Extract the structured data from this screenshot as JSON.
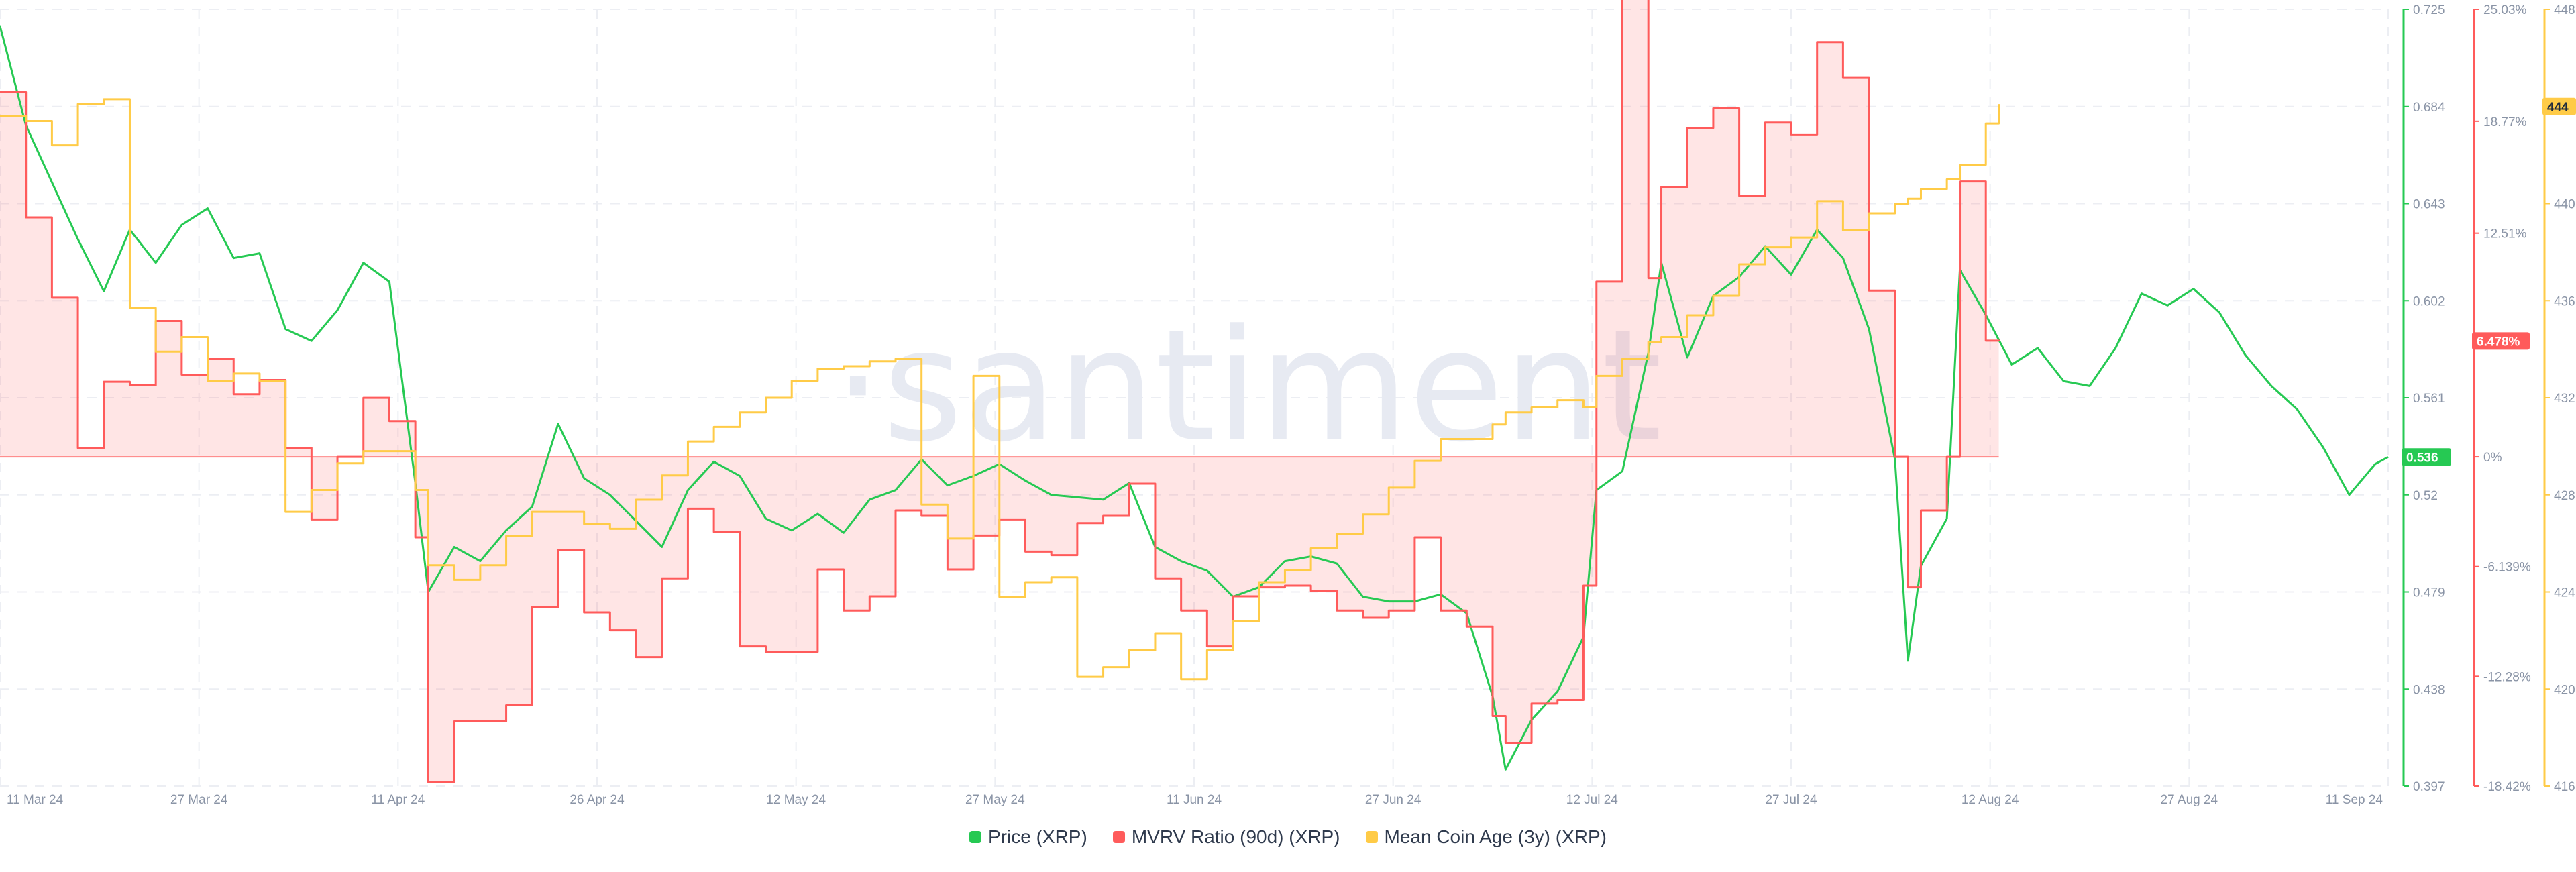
{
  "chart_data": {
    "type": "line",
    "title": "",
    "watermark": "·santiment",
    "x_axis": {
      "labels": [
        "11 Mar 24",
        "27 Mar 24",
        "11 Apr 24",
        "26 Apr 24",
        "12 May 24",
        "27 May 24",
        "11 Jun 24",
        "27 Jun 24",
        "12 Jul 24",
        "27 Jul 24",
        "12 Aug 24",
        "27 Aug 24",
        "11 Sep 24"
      ],
      "range": [
        "2024-03-11",
        "2024-09-11"
      ]
    },
    "axes": {
      "price": {
        "color": "#26c953",
        "ticks": [
          "0.725",
          "0.684",
          "0.643",
          "0.602",
          "0.561",
          "0.52",
          "0.479",
          "0.438",
          "0.397"
        ],
        "range": [
          0.397,
          0.725
        ]
      },
      "mvrv": {
        "color": "#ff5b5b",
        "ticks": [
          "25.03%",
          "18.77%",
          "12.51%",
          "6.478%",
          "0%",
          "-6.139%",
          "-12.28%",
          "-18.42%"
        ],
        "range": [
          -18.42,
          25.03
        ],
        "unit": "%"
      },
      "mca": {
        "color": "#ffcb47",
        "ticks": [
          "448",
          "444",
          "440",
          "436",
          "432",
          "428",
          "424",
          "420",
          "416"
        ],
        "range": [
          416,
          448
        ]
      }
    },
    "current_values": {
      "price": "0.536",
      "mvrv": "6.478%",
      "mca": "444"
    },
    "series": [
      {
        "name": "Price (XRP)",
        "key": "price",
        "color": "#26c953",
        "points": [
          [
            "2024-03-11",
            0.718
          ],
          [
            "2024-03-13",
            0.676
          ],
          [
            "2024-03-15",
            0.652
          ],
          [
            "2024-03-17",
            0.628
          ],
          [
            "2024-03-19",
            0.606
          ],
          [
            "2024-03-21",
            0.632
          ],
          [
            "2024-03-23",
            0.618
          ],
          [
            "2024-03-25",
            0.634
          ],
          [
            "2024-03-27",
            0.641
          ],
          [
            "2024-03-29",
            0.62
          ],
          [
            "2024-03-31",
            0.622
          ],
          [
            "2024-04-02",
            0.59
          ],
          [
            "2024-04-04",
            0.585
          ],
          [
            "2024-04-06",
            0.598
          ],
          [
            "2024-04-08",
            0.618
          ],
          [
            "2024-04-10",
            0.61
          ],
          [
            "2024-04-12",
            0.525
          ],
          [
            "2024-04-13",
            0.479
          ],
          [
            "2024-04-15",
            0.498
          ],
          [
            "2024-04-17",
            0.492
          ],
          [
            "2024-04-19",
            0.505
          ],
          [
            "2024-04-21",
            0.515
          ],
          [
            "2024-04-23",
            0.55
          ],
          [
            "2024-04-25",
            0.527
          ],
          [
            "2024-04-27",
            0.52
          ],
          [
            "2024-04-29",
            0.509
          ],
          [
            "2024-05-01",
            0.498
          ],
          [
            "2024-05-03",
            0.522
          ],
          [
            "2024-05-05",
            0.534
          ],
          [
            "2024-05-07",
            0.528
          ],
          [
            "2024-05-09",
            0.51
          ],
          [
            "2024-05-11",
            0.505
          ],
          [
            "2024-05-13",
            0.512
          ],
          [
            "2024-05-15",
            0.504
          ],
          [
            "2024-05-17",
            0.518
          ],
          [
            "2024-05-19",
            0.522
          ],
          [
            "2024-05-21",
            0.535
          ],
          [
            "2024-05-23",
            0.524
          ],
          [
            "2024-05-25",
            0.528
          ],
          [
            "2024-05-27",
            0.533
          ],
          [
            "2024-05-29",
            0.526
          ],
          [
            "2024-05-31",
            0.52
          ],
          [
            "2024-06-02",
            0.519
          ],
          [
            "2024-06-04",
            0.518
          ],
          [
            "2024-06-06",
            0.525
          ],
          [
            "2024-06-08",
            0.498
          ],
          [
            "2024-06-10",
            0.492
          ],
          [
            "2024-06-12",
            0.488
          ],
          [
            "2024-06-14",
            0.477
          ],
          [
            "2024-06-16",
            0.481
          ],
          [
            "2024-06-18",
            0.492
          ],
          [
            "2024-06-20",
            0.494
          ],
          [
            "2024-06-22",
            0.491
          ],
          [
            "2024-06-24",
            0.477
          ],
          [
            "2024-06-26",
            0.475
          ],
          [
            "2024-06-28",
            0.475
          ],
          [
            "2024-06-30",
            0.478
          ],
          [
            "2024-07-02",
            0.47
          ],
          [
            "2024-07-04",
            0.435
          ],
          [
            "2024-07-05",
            0.404
          ],
          [
            "2024-07-07",
            0.425
          ],
          [
            "2024-07-09",
            0.437
          ],
          [
            "2024-07-11",
            0.46
          ],
          [
            "2024-07-12",
            0.522
          ],
          [
            "2024-07-14",
            0.53
          ],
          [
            "2024-07-16",
            0.58
          ],
          [
            "2024-07-17",
            0.618
          ],
          [
            "2024-07-19",
            0.578
          ],
          [
            "2024-07-21",
            0.604
          ],
          [
            "2024-07-23",
            0.612
          ],
          [
            "2024-07-25",
            0.625
          ],
          [
            "2024-07-27",
            0.613
          ],
          [
            "2024-07-29",
            0.632
          ],
          [
            "2024-07-31",
            0.62
          ],
          [
            "2024-08-02",
            0.59
          ],
          [
            "2024-08-04",
            0.535
          ],
          [
            "2024-08-05",
            0.45
          ],
          [
            "2024-08-06",
            0.49
          ],
          [
            "2024-08-08",
            0.51
          ],
          [
            "2024-08-09",
            0.615
          ],
          [
            "2024-08-11",
            0.596
          ],
          [
            "2024-08-13",
            0.575
          ],
          [
            "2024-08-15",
            0.582
          ],
          [
            "2024-08-17",
            0.568
          ],
          [
            "2024-08-19",
            0.566
          ],
          [
            "2024-08-21",
            0.582
          ],
          [
            "2024-08-23",
            0.605
          ],
          [
            "2024-08-25",
            0.6
          ],
          [
            "2024-08-27",
            0.607
          ],
          [
            "2024-08-29",
            0.597
          ],
          [
            "2024-08-31",
            0.579
          ],
          [
            "2024-09-02",
            0.566
          ],
          [
            "2024-09-04",
            0.556
          ],
          [
            "2024-09-06",
            0.54
          ],
          [
            "2024-09-08",
            0.52
          ],
          [
            "2024-09-10",
            0.533
          ],
          [
            "2024-09-11",
            0.536
          ]
        ]
      },
      {
        "name": "MVRV Ratio (90d) (XRP)",
        "key": "mvrv",
        "color": "#ff5b5b",
        "points": [
          [
            "2024-03-11",
            20.4
          ],
          [
            "2024-03-13",
            13.4
          ],
          [
            "2024-03-15",
            8.9
          ],
          [
            "2024-03-17",
            0.5
          ],
          [
            "2024-03-19",
            4.2
          ],
          [
            "2024-03-21",
            4.0
          ],
          [
            "2024-03-23",
            7.6
          ],
          [
            "2024-03-25",
            4.6
          ],
          [
            "2024-03-27",
            5.5
          ],
          [
            "2024-03-29",
            3.5
          ],
          [
            "2024-03-31",
            4.3
          ],
          [
            "2024-04-02",
            0.5
          ],
          [
            "2024-04-04",
            -3.5
          ],
          [
            "2024-04-06",
            0.0
          ],
          [
            "2024-04-08",
            3.3
          ],
          [
            "2024-04-10",
            2.0
          ],
          [
            "2024-04-12",
            -4.5
          ],
          [
            "2024-04-13",
            -18.2
          ],
          [
            "2024-04-15",
            -14.8
          ],
          [
            "2024-04-17",
            -14.8
          ],
          [
            "2024-04-19",
            -13.9
          ],
          [
            "2024-04-21",
            -8.4
          ],
          [
            "2024-04-23",
            -5.2
          ],
          [
            "2024-04-25",
            -8.7
          ],
          [
            "2024-04-27",
            -9.7
          ],
          [
            "2024-04-29",
            -11.2
          ],
          [
            "2024-05-01",
            -6.8
          ],
          [
            "2024-05-03",
            -2.9
          ],
          [
            "2024-05-05",
            -4.2
          ],
          [
            "2024-05-07",
            -10.6
          ],
          [
            "2024-05-09",
            -10.9
          ],
          [
            "2024-05-11",
            -10.9
          ],
          [
            "2024-05-13",
            -6.3
          ],
          [
            "2024-05-15",
            -8.6
          ],
          [
            "2024-05-17",
            -7.8
          ],
          [
            "2024-05-19",
            -3.0
          ],
          [
            "2024-05-21",
            -3.3
          ],
          [
            "2024-05-23",
            -6.3
          ],
          [
            "2024-05-25",
            -4.4
          ],
          [
            "2024-05-27",
            -3.5
          ],
          [
            "2024-05-29",
            -5.3
          ],
          [
            "2024-05-31",
            -5.5
          ],
          [
            "2024-06-02",
            -3.7
          ],
          [
            "2024-06-04",
            -3.3
          ],
          [
            "2024-06-06",
            -1.5
          ],
          [
            "2024-06-08",
            -6.8
          ],
          [
            "2024-06-10",
            -8.6
          ],
          [
            "2024-06-12",
            -10.6
          ],
          [
            "2024-06-14",
            -7.8
          ],
          [
            "2024-06-16",
            -7.3
          ],
          [
            "2024-06-18",
            -7.2
          ],
          [
            "2024-06-20",
            -7.5
          ],
          [
            "2024-06-22",
            -8.6
          ],
          [
            "2024-06-24",
            -9.0
          ],
          [
            "2024-06-26",
            -8.6
          ],
          [
            "2024-06-28",
            -4.5
          ],
          [
            "2024-06-30",
            -8.6
          ],
          [
            "2024-07-02",
            -9.5
          ],
          [
            "2024-07-04",
            -14.5
          ],
          [
            "2024-07-05",
            -16.0
          ],
          [
            "2024-07-07",
            -13.8
          ],
          [
            "2024-07-09",
            -13.6
          ],
          [
            "2024-07-11",
            -7.2
          ],
          [
            "2024-07-12",
            9.8
          ],
          [
            "2024-07-14",
            26.6
          ],
          [
            "2024-07-16",
            10.0
          ],
          [
            "2024-07-17",
            15.1
          ],
          [
            "2024-07-19",
            18.4
          ],
          [
            "2024-07-21",
            19.5
          ],
          [
            "2024-07-23",
            14.6
          ],
          [
            "2024-07-25",
            18.7
          ],
          [
            "2024-07-27",
            18.0
          ],
          [
            "2024-07-29",
            23.2
          ],
          [
            "2024-07-31",
            21.2
          ],
          [
            "2024-08-02",
            9.3
          ],
          [
            "2024-08-04",
            0.0
          ],
          [
            "2024-08-05",
            -7.3
          ],
          [
            "2024-08-06",
            -3.0
          ],
          [
            "2024-08-08",
            0.0
          ],
          [
            "2024-08-09",
            15.4
          ],
          [
            "2024-08-11",
            6.5
          ],
          [
            "2024-08-12",
            6.478
          ]
        ]
      },
      {
        "name": "Mean Coin Age (3y) (XRP)",
        "key": "mca",
        "color": "#ffcb47",
        "points": [
          [
            "2024-03-11",
            443.6
          ],
          [
            "2024-03-13",
            443.4
          ],
          [
            "2024-03-15",
            442.4
          ],
          [
            "2024-03-17",
            444.1
          ],
          [
            "2024-03-19",
            444.3
          ],
          [
            "2024-03-21",
            435.7
          ],
          [
            "2024-03-23",
            433.9
          ],
          [
            "2024-03-25",
            434.5
          ],
          [
            "2024-03-27",
            432.7
          ],
          [
            "2024-03-29",
            433.0
          ],
          [
            "2024-03-31",
            432.7
          ],
          [
            "2024-04-02",
            427.3
          ],
          [
            "2024-04-04",
            428.2
          ],
          [
            "2024-04-06",
            429.3
          ],
          [
            "2024-04-08",
            429.8
          ],
          [
            "2024-04-10",
            429.8
          ],
          [
            "2024-04-12",
            428.2
          ],
          [
            "2024-04-13",
            425.1
          ],
          [
            "2024-04-15",
            424.5
          ],
          [
            "2024-04-17",
            425.1
          ],
          [
            "2024-04-19",
            426.3
          ],
          [
            "2024-04-21",
            427.3
          ],
          [
            "2024-04-23",
            427.3
          ],
          [
            "2024-04-25",
            426.8
          ],
          [
            "2024-04-27",
            426.6
          ],
          [
            "2024-04-29",
            427.8
          ],
          [
            "2024-05-01",
            428.8
          ],
          [
            "2024-05-03",
            430.2
          ],
          [
            "2024-05-05",
            430.8
          ],
          [
            "2024-05-07",
            431.4
          ],
          [
            "2024-05-09",
            432.0
          ],
          [
            "2024-05-11",
            432.7
          ],
          [
            "2024-05-13",
            433.2
          ],
          [
            "2024-05-15",
            433.3
          ],
          [
            "2024-05-17",
            433.5
          ],
          [
            "2024-05-19",
            433.6
          ],
          [
            "2024-05-21",
            427.6
          ],
          [
            "2024-05-23",
            426.2
          ],
          [
            "2024-05-25",
            432.9
          ],
          [
            "2024-05-27",
            423.8
          ],
          [
            "2024-05-29",
            424.4
          ],
          [
            "2024-05-31",
            424.6
          ],
          [
            "2024-06-02",
            420.5
          ],
          [
            "2024-06-04",
            420.9
          ],
          [
            "2024-06-06",
            421.6
          ],
          [
            "2024-06-08",
            422.3
          ],
          [
            "2024-06-10",
            420.4
          ],
          [
            "2024-06-12",
            421.6
          ],
          [
            "2024-06-14",
            422.8
          ],
          [
            "2024-06-16",
            424.4
          ],
          [
            "2024-06-18",
            424.9
          ],
          [
            "2024-06-20",
            425.8
          ],
          [
            "2024-06-22",
            426.4
          ],
          [
            "2024-06-24",
            427.2
          ],
          [
            "2024-06-26",
            428.3
          ],
          [
            "2024-06-28",
            429.4
          ],
          [
            "2024-06-30",
            430.3
          ],
          [
            "2024-07-02",
            430.3
          ],
          [
            "2024-07-04",
            430.9
          ],
          [
            "2024-07-05",
            431.4
          ],
          [
            "2024-07-07",
            431.6
          ],
          [
            "2024-07-09",
            431.9
          ],
          [
            "2024-07-11",
            431.6
          ],
          [
            "2024-07-12",
            432.9
          ],
          [
            "2024-07-14",
            433.6
          ],
          [
            "2024-07-16",
            434.3
          ],
          [
            "2024-07-17",
            434.5
          ],
          [
            "2024-07-19",
            435.4
          ],
          [
            "2024-07-21",
            436.2
          ],
          [
            "2024-07-23",
            437.5
          ],
          [
            "2024-07-25",
            438.2
          ],
          [
            "2024-07-27",
            438.6
          ],
          [
            "2024-07-29",
            440.1
          ],
          [
            "2024-07-31",
            438.9
          ],
          [
            "2024-08-02",
            439.6
          ],
          [
            "2024-08-04",
            440.0
          ],
          [
            "2024-08-05",
            440.2
          ],
          [
            "2024-08-06",
            440.6
          ],
          [
            "2024-08-08",
            441.0
          ],
          [
            "2024-08-09",
            441.6
          ],
          [
            "2024-08-11",
            443.3
          ],
          [
            "2024-08-12",
            444.1
          ]
        ]
      }
    ],
    "legend": {
      "placement": "bottom-center"
    },
    "grid": true
  }
}
